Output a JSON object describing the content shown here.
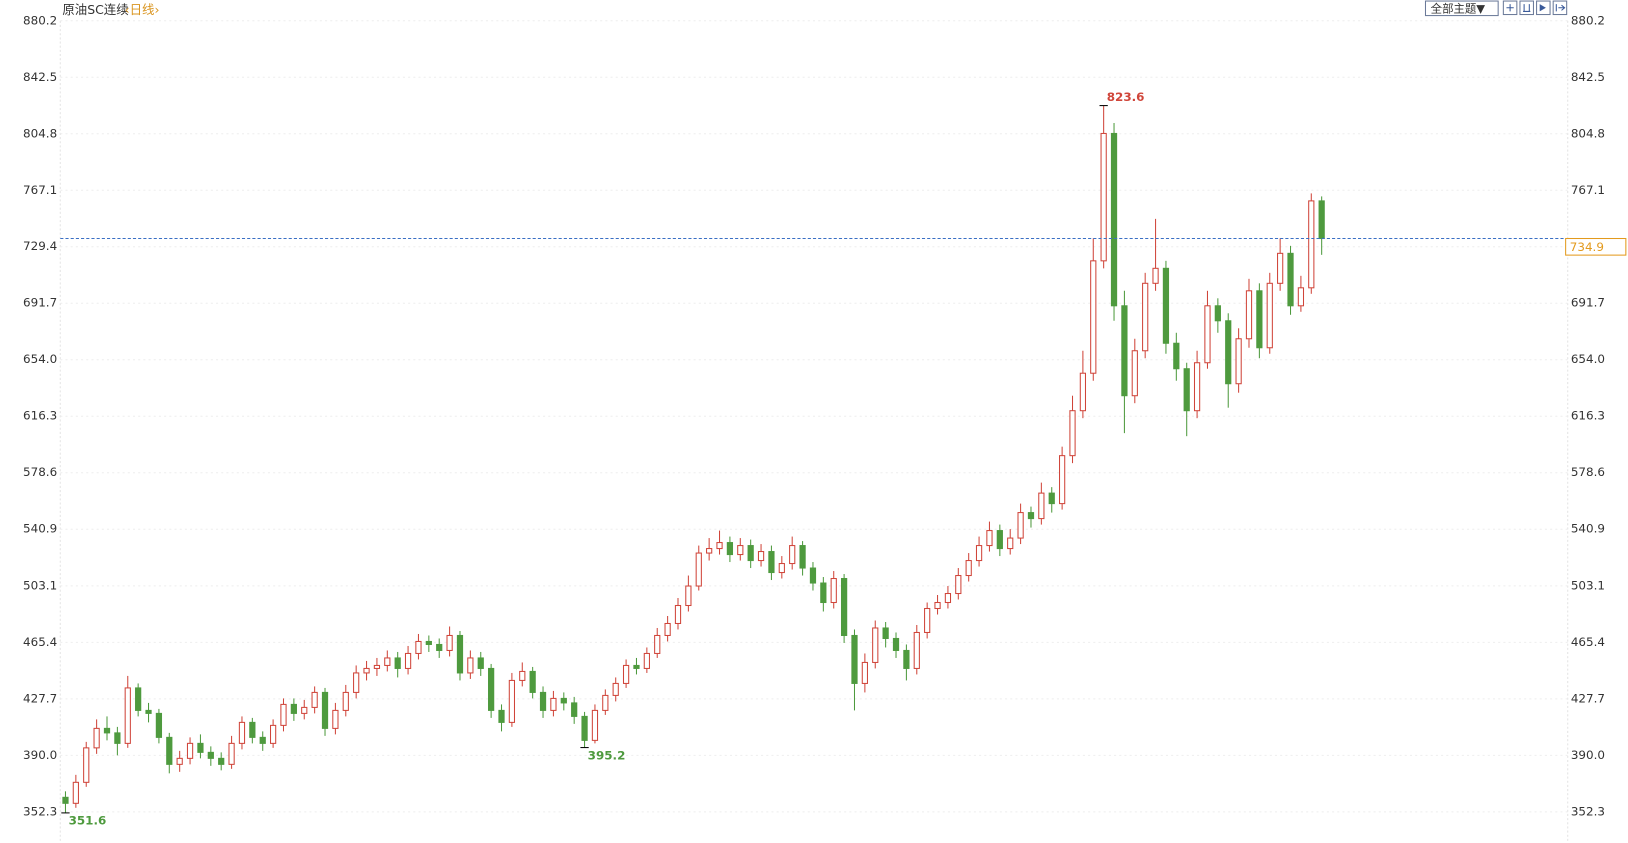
{
  "chart_data": {
    "type": "candlestick",
    "title": "原油SC连续",
    "period": "‹日线›",
    "theme_button": "全部主题▼",
    "up_color": "#d0453a",
    "down_color": "#4e9a3e",
    "last_line_color": "#3a6fc4",
    "last_label_color": "#e39a1d",
    "ylim": [
      352.3,
      880.2
    ],
    "yticks": [
      880.2,
      842.5,
      804.8,
      767.1,
      729.4,
      691.7,
      {
        "value": 654,
        "label": "654.0"
      },
      616.3,
      578.6,
      540.9,
      503.1,
      465.4,
      427.7,
      {
        "value": 390,
        "label": "390.0"
      },
      352.3
    ],
    "grid": true,
    "open": [
      362,
      358,
      372,
      395,
      408,
      405,
      398,
      435,
      420,
      418,
      402,
      384,
      388,
      398,
      392,
      388,
      384,
      398,
      412,
      402,
      398,
      410,
      424,
      418,
      422,
      432,
      408,
      420,
      432,
      445,
      448,
      450,
      455,
      448,
      458,
      466,
      464,
      460,
      470,
      445,
      455,
      448,
      420,
      412,
      440,
      446,
      432,
      420,
      428,
      425,
      416,
      400,
      420,
      430,
      438,
      450,
      448,
      458,
      470,
      478,
      490,
      503,
      525,
      528,
      532,
      524,
      530,
      520,
      526,
      512,
      518,
      530,
      515,
      505,
      492,
      508,
      470,
      438,
      452,
      475,
      468,
      460,
      448,
      472,
      488,
      492,
      498,
      510,
      520,
      530,
      540,
      528,
      535,
      552,
      548,
      565,
      558,
      590,
      620,
      645,
      720,
      805,
      690,
      630,
      660,
      705,
      715,
      665,
      648,
      620,
      652,
      690,
      680,
      638,
      668,
      700,
      662,
      705,
      725,
      690,
      702,
      760
    ],
    "high": [
      366,
      377,
      399,
      414,
      416,
      409,
      443,
      438,
      425,
      421,
      405,
      393,
      402,
      404,
      396,
      392,
      403,
      416,
      415,
      406,
      414,
      428,
      428,
      427,
      436,
      435,
      425,
      437,
      450,
      453,
      455,
      460,
      459,
      463,
      471,
      470,
      468,
      476,
      473,
      460,
      459,
      451,
      424,
      445,
      452,
      449,
      436,
      433,
      432,
      429,
      419,
      424,
      434,
      442,
      454,
      455,
      462,
      475,
      483,
      495,
      510,
      530,
      535,
      540,
      536,
      535,
      534,
      531,
      530,
      523,
      536,
      533,
      519,
      509,
      513,
      511,
      474,
      458,
      480,
      479,
      472,
      464,
      477,
      492,
      497,
      503,
      515,
      525,
      536,
      546,
      544,
      541,
      558,
      556,
      572,
      569,
      596,
      630,
      660,
      735,
      823.6,
      812,
      700,
      668,
      712,
      748,
      720,
      672,
      652,
      660,
      700,
      695,
      685,
      675,
      708,
      705,
      712,
      735,
      730,
      710,
      765,
      763
    ],
    "low": [
      351.6,
      355,
      369,
      391,
      400,
      390,
      395,
      416,
      412,
      398,
      378,
      379,
      384,
      388,
      383,
      380,
      381,
      394,
      398,
      393,
      395,
      406,
      413,
      414,
      418,
      403,
      404,
      416,
      428,
      440,
      443,
      446,
      442,
      444,
      454,
      459,
      455,
      456,
      440,
      441,
      443,
      415,
      406,
      409,
      436,
      428,
      415,
      416,
      420,
      411,
      395.2,
      398,
      417,
      426,
      435,
      444,
      445,
      455,
      466,
      474,
      486,
      500,
      520,
      524,
      519,
      520,
      515,
      516,
      507,
      508,
      514,
      510,
      500,
      486,
      488,
      465,
      420,
      432,
      448,
      462,
      455,
      440,
      444,
      468,
      484,
      488,
      494,
      506,
      516,
      526,
      523,
      524,
      531,
      542,
      544,
      552,
      554,
      585,
      615,
      640,
      715,
      680,
      605,
      625,
      655,
      700,
      658,
      640,
      603,
      615,
      648,
      672,
      622,
      632,
      662,
      655,
      658,
      700,
      684,
      686,
      698,
      724
    ],
    "close": [
      358,
      372,
      395,
      408,
      405,
      398,
      435,
      420,
      418,
      402,
      384,
      388,
      398,
      392,
      388,
      384,
      398,
      412,
      402,
      398,
      410,
      424,
      418,
      422,
      432,
      408,
      420,
      432,
      445,
      448,
      450,
      455,
      448,
      458,
      466,
      464,
      460,
      470,
      445,
      455,
      448,
      420,
      412,
      440,
      446,
      432,
      420,
      428,
      425,
      416,
      400,
      420,
      430,
      438,
      450,
      448,
      458,
      470,
      478,
      490,
      503,
      525,
      528,
      532,
      524,
      530,
      520,
      526,
      512,
      518,
      530,
      515,
      505,
      492,
      508,
      470,
      438,
      452,
      475,
      468,
      460,
      448,
      472,
      488,
      492,
      498,
      510,
      520,
      530,
      540,
      528,
      535,
      552,
      548,
      565,
      558,
      590,
      620,
      645,
      720,
      805,
      690,
      630,
      660,
      705,
      715,
      665,
      648,
      620,
      652,
      690,
      680,
      638,
      668,
      700,
      662,
      705,
      725,
      690,
      702,
      760,
      734.9
    ]
  }
}
